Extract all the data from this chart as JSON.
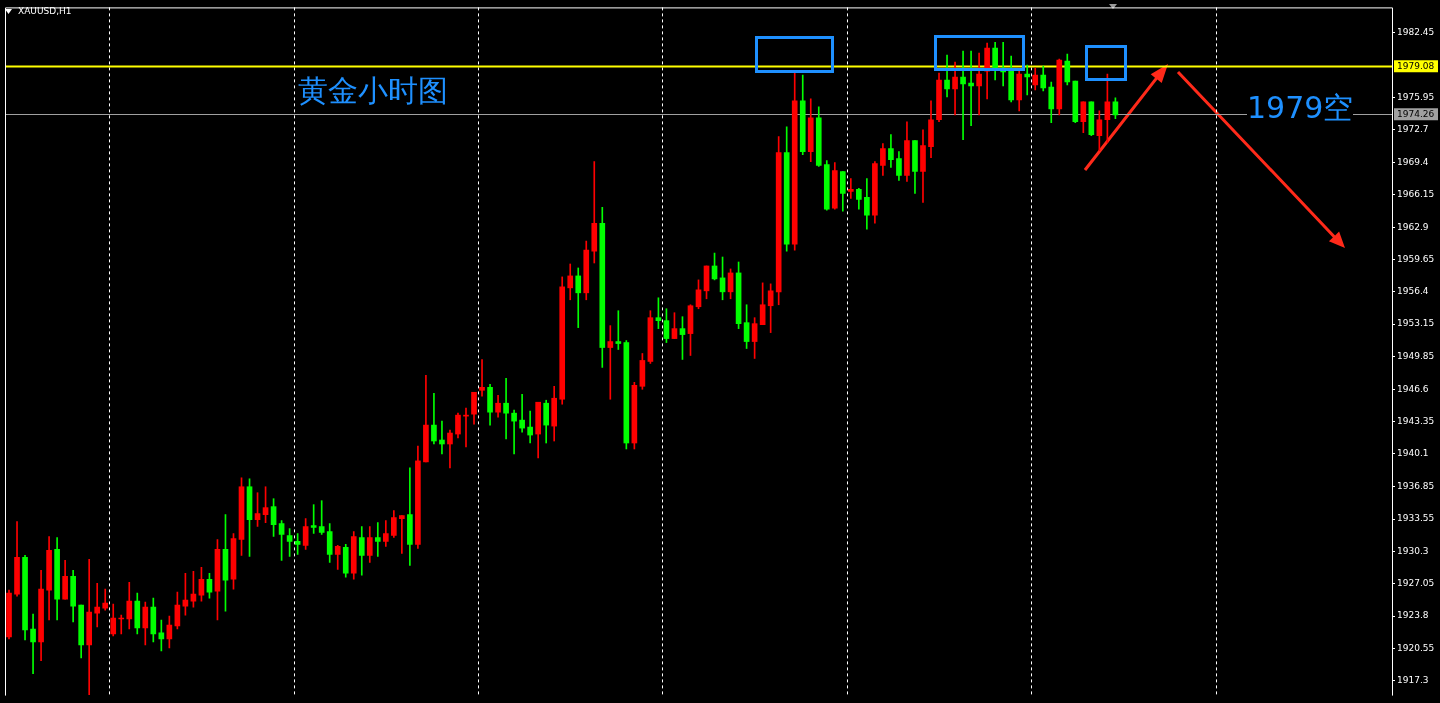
{
  "chart_data": {
    "type": "candlestick",
    "title": "黄金小时图",
    "subtitle": "XAUUSD,H1",
    "annotations": [
      "1979空"
    ],
    "categories": [
      null,
      null,
      null,
      null,
      null,
      null,
      null,
      null,
      null,
      null,
      null,
      null,
      null,
      null,
      null,
      null,
      null,
      null,
      null,
      null,
      null,
      null,
      null,
      null,
      null,
      null,
      null,
      null,
      null,
      null,
      null,
      null,
      null,
      null,
      null,
      null,
      null,
      null,
      null,
      null,
      null,
      null,
      null,
      null,
      null,
      null,
      null,
      null,
      null,
      null,
      null,
      null,
      null,
      null,
      null,
      null,
      null,
      null,
      null,
      null,
      null,
      null,
      null,
      null,
      null,
      null,
      null,
      null,
      null,
      null,
      null,
      null,
      null,
      null,
      null,
      null,
      null,
      null,
      null,
      null,
      null,
      null,
      null,
      null,
      null,
      null,
      null,
      null,
      null,
      null,
      null,
      null,
      null,
      null,
      null,
      null,
      null,
      null,
      null,
      null,
      null,
      null,
      null,
      null,
      null,
      null,
      null,
      null,
      null,
      null,
      null,
      null,
      null,
      null,
      null,
      null,
      null,
      null,
      null,
      null,
      null,
      null,
      null,
      null,
      null,
      null,
      null,
      null,
      null,
      null,
      null,
      null,
      null,
      null,
      null,
      null,
      null,
      null,
      null,
      null,
      null,
      null,
      null,
      null,
      null,
      null,
      null,
      null,
      null,
      null,
      null,
      null,
      null,
      null,
      null,
      null,
      null,
      null,
      null,
      null,
      null,
      null,
      null,
      null,
      null,
      null,
      null,
      null,
      null,
      null,
      null,
      null,
      null
    ],
    "ohlc": [
      [
        1921.7,
        1926.4,
        1921.5,
        1926.1
      ],
      [
        1926.0,
        1933.3,
        1925.8,
        1929.7
      ],
      [
        1929.7,
        1929.9,
        1921.4,
        1922.4
      ],
      [
        1922.5,
        1924.0,
        1918.0,
        1921.2
      ],
      [
        1921.2,
        1928.4,
        1919.3,
        1926.5
      ],
      [
        1926.4,
        1931.8,
        1923.4,
        1930.4
      ],
      [
        1930.5,
        1931.7,
        1923.4,
        1925.5
      ],
      [
        1925.5,
        1929.4,
        1925.5,
        1927.8
      ],
      [
        1927.8,
        1928.4,
        1923.2,
        1924.8
      ],
      [
        1924.9,
        1924.9,
        1919.6,
        1920.9
      ],
      [
        1920.9,
        1929.5,
        1915.9,
        1924.2
      ],
      [
        1924.1,
        1927.1,
        1922.7,
        1924.7
      ],
      [
        1924.6,
        1926.5,
        1924.4,
        1925.1
      ],
      [
        1922.0,
        1925.0,
        1921.8,
        1923.6
      ],
      [
        1923.5,
        1923.9,
        1922.0,
        1923.6
      ],
      [
        1923.5,
        1927.2,
        1922.5,
        1925.3
      ],
      [
        1925.3,
        1926.1,
        1922.0,
        1922.6
      ],
      [
        1922.6,
        1925.2,
        1920.9,
        1924.7
      ],
      [
        1924.7,
        1925.6,
        1921.2,
        1922.0
      ],
      [
        1922.1,
        1923.4,
        1920.3,
        1921.5
      ],
      [
        1921.5,
        1923.8,
        1920.6,
        1922.9
      ],
      [
        1922.8,
        1926.2,
        1922.5,
        1924.9
      ],
      [
        1924.8,
        1928.1,
        1923.9,
        1925.4
      ],
      [
        1925.3,
        1928.3,
        1924.7,
        1926.0
      ],
      [
        1925.9,
        1928.7,
        1925.3,
        1927.5
      ],
      [
        1927.5,
        1928.1,
        1925.6,
        1926.2
      ],
      [
        1926.3,
        1931.5,
        1923.4,
        1930.5
      ],
      [
        1930.5,
        1934.0,
        1924.3,
        1927.4
      ],
      [
        1927.5,
        1932.1,
        1926.5,
        1931.6
      ],
      [
        1931.5,
        1937.7,
        1929.9,
        1936.8
      ],
      [
        1936.8,
        1937.6,
        1929.8,
        1933.5
      ],
      [
        1933.5,
        1936.2,
        1932.8,
        1934.1
      ],
      [
        1934.0,
        1936.8,
        1933.2,
        1934.7
      ],
      [
        1934.8,
        1935.6,
        1931.8,
        1933.0
      ],
      [
        1933.1,
        1933.4,
        1929.4,
        1932.0
      ],
      [
        1931.9,
        1932.6,
        1929.8,
        1931.3
      ],
      [
        1931.3,
        1932.1,
        1930.0,
        1931.0
      ],
      [
        1930.9,
        1933.6,
        1930.5,
        1932.8
      ],
      [
        1932.9,
        1935.0,
        1932.1,
        1932.7
      ],
      [
        1932.8,
        1935.4,
        1932.0,
        1932.2
      ],
      [
        1932.3,
        1933.1,
        1929.2,
        1930.0
      ],
      [
        1930.0,
        1930.9,
        1928.5,
        1930.8
      ],
      [
        1930.7,
        1931.0,
        1927.7,
        1928.1
      ],
      [
        1928.1,
        1932.3,
        1927.5,
        1931.8
      ],
      [
        1931.7,
        1932.8,
        1927.9,
        1929.9
      ],
      [
        1929.9,
        1932.8,
        1929.2,
        1931.7
      ],
      [
        1931.7,
        1933.2,
        1929.8,
        1931.3
      ],
      [
        1931.3,
        1933.4,
        1930.8,
        1932.1
      ],
      [
        1931.9,
        1934.4,
        1931.7,
        1933.7
      ],
      [
        1933.6,
        1933.9,
        1930.1,
        1933.9
      ],
      [
        1934.0,
        1938.7,
        1928.9,
        1931.0
      ],
      [
        1931.0,
        1940.9,
        1930.6,
        1939.4
      ],
      [
        1939.3,
        1948.0,
        1939.3,
        1943.0
      ],
      [
        1943.0,
        1946.2,
        1941.1,
        1941.4
      ],
      [
        1941.5,
        1943.4,
        1940.1,
        1941.1
      ],
      [
        1941.1,
        1942.5,
        1938.7,
        1942.2
      ],
      [
        1942.1,
        1944.2,
        1941.7,
        1944.0
      ],
      [
        1943.9,
        1944.7,
        1940.8,
        1944.0
      ],
      [
        1944.1,
        1946.3,
        1943.1,
        1946.3
      ],
      [
        1946.5,
        1949.6,
        1945.9,
        1946.8
      ],
      [
        1946.8,
        1947.1,
        1943.0,
        1944.3
      ],
      [
        1944.3,
        1946.0,
        1943.8,
        1945.2
      ],
      [
        1945.2,
        1947.7,
        1941.6,
        1944.2
      ],
      [
        1944.2,
        1944.5,
        1940.1,
        1943.4
      ],
      [
        1943.5,
        1946.1,
        1942.3,
        1942.7
      ],
      [
        1942.8,
        1944.4,
        1941.2,
        1942.0
      ],
      [
        1942.1,
        1945.3,
        1939.7,
        1945.3
      ],
      [
        1945.2,
        1945.5,
        1941.2,
        1943.0
      ],
      [
        1942.9,
        1946.9,
        1941.4,
        1945.7
      ],
      [
        1945.6,
        1957.9,
        1945.1,
        1956.9
      ],
      [
        1956.8,
        1959.2,
        1955.6,
        1958.0
      ],
      [
        1958.0,
        1958.8,
        1952.8,
        1956.3
      ],
      [
        1956.3,
        1961.5,
        1955.6,
        1960.6
      ],
      [
        1960.5,
        1969.5,
        1959.3,
        1963.3
      ],
      [
        1963.3,
        1964.9,
        1948.8,
        1950.8
      ],
      [
        1950.8,
        1953.0,
        1945.6,
        1951.4
      ],
      [
        1951.4,
        1954.5,
        1950.6,
        1951.2
      ],
      [
        1951.3,
        1951.5,
        1940.6,
        1941.2
      ],
      [
        1941.2,
        1947.3,
        1940.6,
        1947.0
      ],
      [
        1946.9,
        1950.2,
        1946.6,
        1949.5
      ],
      [
        1949.4,
        1954.5,
        1949.2,
        1953.8
      ],
      [
        1953.8,
        1955.8,
        1952.7,
        1953.5
      ],
      [
        1953.5,
        1954.7,
        1951.3,
        1951.7
      ],
      [
        1951.7,
        1954.3,
        1951.7,
        1952.7
      ],
      [
        1952.7,
        1953.9,
        1949.6,
        1952.1
      ],
      [
        1952.2,
        1955.1,
        1950.0,
        1955.0
      ],
      [
        1954.9,
        1957.6,
        1954.7,
        1956.6
      ],
      [
        1956.5,
        1959.0,
        1955.7,
        1959.0
      ],
      [
        1959.0,
        1960.3,
        1957.6,
        1957.7
      ],
      [
        1957.8,
        1959.9,
        1955.6,
        1956.4
      ],
      [
        1956.4,
        1958.7,
        1955.7,
        1958.3
      ],
      [
        1958.3,
        1959.4,
        1952.7,
        1953.2
      ],
      [
        1953.3,
        1955.1,
        1950.7,
        1951.4
      ],
      [
        1951.4,
        1953.8,
        1949.7,
        1953.2
      ],
      [
        1953.1,
        1957.3,
        1953.1,
        1955.1
      ],
      [
        1955.0,
        1957.2,
        1952.3,
        1956.5
      ],
      [
        1956.4,
        1972.0,
        1955.1,
        1970.4
      ],
      [
        1970.4,
        1973.0,
        1960.5,
        1961.2
      ],
      [
        1961.2,
        1978.6,
        1960.6,
        1975.6
      ],
      [
        1975.6,
        1978.2,
        1970.2,
        1970.5
      ],
      [
        1970.5,
        1975.8,
        1969.5,
        1973.9
      ],
      [
        1973.9,
        1975.0,
        1969.0,
        1969.1
      ],
      [
        1969.2,
        1969.6,
        1964.6,
        1964.7
      ],
      [
        1964.8,
        1969.4,
        1964.7,
        1968.6
      ],
      [
        1968.5,
        1968.5,
        1964.5,
        1966.3
      ],
      [
        1966.5,
        1967.8,
        1965.8,
        1966.7
      ],
      [
        1966.7,
        1966.8,
        1964.7,
        1965.7
      ],
      [
        1965.9,
        1967.8,
        1962.7,
        1964.1
      ],
      [
        1964.1,
        1969.5,
        1963.3,
        1969.3
      ],
      [
        1969.1,
        1971.3,
        1968.1,
        1970.8
      ],
      [
        1970.8,
        1972.2,
        1968.9,
        1969.7
      ],
      [
        1969.8,
        1970.5,
        1967.6,
        1968.1
      ],
      [
        1968.1,
        1973.5,
        1967.5,
        1971.6
      ],
      [
        1971.6,
        1971.6,
        1966.3,
        1968.5
      ],
      [
        1968.5,
        1972.7,
        1965.4,
        1971.1
      ],
      [
        1971.0,
        1975.6,
        1969.9,
        1973.7
      ],
      [
        1973.7,
        1978.4,
        1973.5,
        1977.7
      ],
      [
        1977.7,
        1980.2,
        1976.0,
        1976.8
      ],
      [
        1976.8,
        1979.5,
        1974.2,
        1978.0
      ],
      [
        1978.0,
        1980.6,
        1971.7,
        1977.3
      ],
      [
        1977.4,
        1980.6,
        1973.1,
        1977.1
      ],
      [
        1977.1,
        1980.4,
        1974.2,
        1978.3
      ],
      [
        1978.6,
        1981.4,
        1975.8,
        1980.9
      ],
      [
        1980.9,
        1981.5,
        1977.7,
        1978.8
      ],
      [
        1978.9,
        1981.5,
        1977.1,
        1978.5
      ],
      [
        1978.6,
        1980.1,
        1975.5,
        1975.7
      ],
      [
        1975.7,
        1978.9,
        1974.6,
        1978.3
      ],
      [
        1978.3,
        1979.2,
        1976.2,
        1978.0
      ],
      [
        1977.2,
        1978.9,
        1976.7,
        1978.2
      ],
      [
        1978.2,
        1979.1,
        1976.6,
        1976.9
      ],
      [
        1977.0,
        1977.5,
        1973.4,
        1974.8
      ],
      [
        1974.8,
        1979.8,
        1974.2,
        1979.7
      ],
      [
        1979.6,
        1980.3,
        1977.2,
        1977.5
      ],
      [
        1977.6,
        1977.6,
        1973.4,
        1973.5
      ],
      [
        1973.5,
        1975.5,
        1972.4,
        1975.5
      ],
      [
        1975.5,
        1975.5,
        1972.1,
        1972.2
      ],
      [
        1972.1,
        1974.6,
        1970.6,
        1973.7
      ],
      [
        1973.7,
        1978.3,
        1971.4,
        1975.5
      ],
      [
        1975.5,
        1975.9,
        1973.8,
        1974.2
      ],
      null,
      null,
      null,
      null,
      null,
      null,
      null,
      null,
      null,
      null,
      null,
      null,
      null,
      null,
      null,
      null,
      null,
      null,
      null,
      null,
      null,
      null,
      null,
      null,
      null,
      null,
      null,
      null,
      null,
      null,
      null,
      null,
      null,
      null
    ],
    "colors": [
      "#ff0000",
      "#ff0000",
      "#00ff00",
      "#00ff00",
      "#ff0000",
      "#ff0000",
      "#00ff00",
      "#ff0000",
      "#00ff00",
      "#00ff00",
      "#ff0000",
      "#ff0000",
      "#ff0000",
      "#ff0000",
      "#ff0000",
      "#ff0000",
      "#00ff00",
      "#ff0000",
      "#00ff00",
      "#00ff00",
      "#ff0000",
      "#ff0000",
      "#ff0000",
      "#ff0000",
      "#ff0000",
      "#00ff00",
      "#ff0000",
      "#00ff00",
      "#ff0000",
      "#ff0000",
      "#00ff00",
      "#ff0000",
      "#ff0000",
      "#00ff00",
      "#00ff00",
      "#00ff00",
      "#00ff00",
      "#ff0000",
      "#00ff00",
      "#00ff00",
      "#00ff00",
      "#ff0000",
      "#00ff00",
      "#ff0000",
      "#00ff00",
      "#ff0000",
      "#00ff00",
      "#ff0000",
      "#ff0000",
      "#ff0000",
      "#00ff00",
      "#ff0000",
      "#ff0000",
      "#00ff00",
      "#00ff00",
      "#ff0000",
      "#ff0000",
      "#ff0000",
      "#ff0000",
      "#ff0000",
      "#00ff00",
      "#ff0000",
      "#00ff00",
      "#00ff00",
      "#00ff00",
      "#00ff00",
      "#ff0000",
      "#00ff00",
      "#ff0000",
      "#ff0000",
      "#ff0000",
      "#00ff00",
      "#ff0000",
      "#ff0000",
      "#00ff00",
      "#ff0000",
      "#00ff00",
      "#00ff00",
      "#ff0000",
      "#ff0000",
      "#ff0000",
      "#00ff00",
      "#00ff00",
      "#ff0000",
      "#00ff00",
      "#ff0000",
      "#ff0000",
      "#ff0000",
      "#00ff00",
      "#00ff00",
      "#ff0000",
      "#00ff00",
      "#00ff00",
      "#ff0000",
      "#ff0000",
      "#ff0000",
      "#ff0000",
      "#00ff00",
      "#ff0000",
      "#00ff00",
      "#ff0000",
      "#00ff00",
      "#00ff00",
      "#ff0000",
      "#00ff00",
      "#ff0000",
      "#00ff00",
      "#00ff00",
      "#ff0000",
      "#ff0000",
      "#00ff00",
      "#00ff00",
      "#ff0000",
      "#00ff00",
      "#ff0000",
      "#ff0000",
      "#ff0000",
      "#00ff00",
      "#ff0000",
      "#00ff00",
      "#00ff00",
      "#ff0000",
      "#ff0000",
      "#00ff00",
      "#00ff00",
      "#00ff00",
      "#ff0000",
      "#00ff00",
      "#ff0000",
      "#00ff00",
      "#00ff00",
      "#ff0000",
      "#00ff00",
      "#00ff00",
      "#ff0000",
      "#00ff00",
      "#ff0000",
      "#ff0000",
      "#00ff00",
      null,
      null,
      null,
      null,
      null,
      null,
      null,
      null,
      null,
      null,
      null,
      null,
      null,
      null,
      null,
      null,
      null,
      null,
      null,
      null,
      null,
      null,
      null,
      null,
      null,
      null,
      null,
      null,
      null,
      null,
      null,
      null,
      null,
      null
    ],
    "ylim": [
      1915.8,
      1985.0
    ],
    "yticks": [
      1982.45,
      1975.95,
      1972.7,
      1969.4,
      1966.15,
      1962.9,
      1959.65,
      1956.4,
      1953.15,
      1949.85,
      1946.6,
      1943.35,
      1940.1,
      1936.85,
      1933.55,
      1930.3,
      1927.05,
      1923.8,
      1920.55,
      1917.3
    ],
    "ref_lines": [
      {
        "axis": "y",
        "value": 1979.08,
        "label": "1979.08",
        "color": "#ffff00"
      },
      {
        "axis": "y",
        "value": 1974.26,
        "label": "1974.26",
        "color": "#a0a0a0"
      }
    ],
    "grid": "x"
  }
}
